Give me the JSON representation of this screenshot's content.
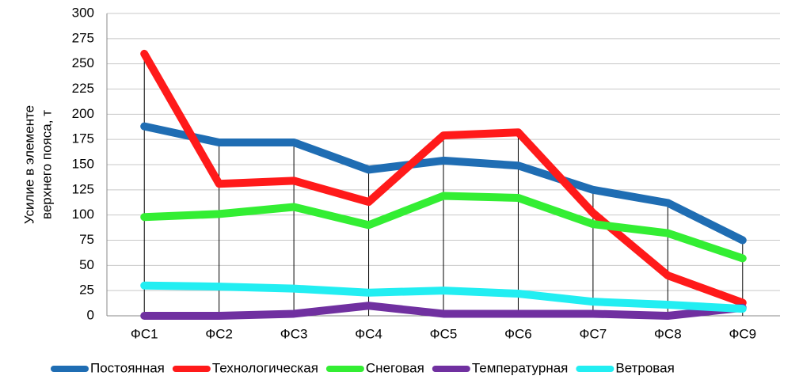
{
  "chart_data": {
    "type": "line",
    "ylabel": [
      "Усилие в элементе",
      "верхнего пояса, т"
    ],
    "categories": [
      "ФС1",
      "ФС2",
      "ФС3",
      "ФС4",
      "ФС5",
      "ФС6",
      "ФС7",
      "ФС8",
      "ФС9"
    ],
    "series": [
      {
        "name": "Постоянная",
        "color": "#1f6db3",
        "values": [
          188,
          172,
          172,
          145,
          154,
          149,
          125,
          112,
          75
        ]
      },
      {
        "name": "Технологическая",
        "color": "#ff1a1a",
        "values": [
          260,
          131,
          134,
          113,
          179,
          182,
          102,
          40,
          13
        ]
      },
      {
        "name": "Снеговая",
        "color": "#33ee33",
        "values": [
          98,
          101,
          108,
          90,
          119,
          117,
          91,
          82,
          57
        ]
      },
      {
        "name": "Температурная",
        "color": "#7030a0",
        "values": [
          0,
          0,
          2,
          10,
          2,
          2,
          2,
          0,
          8
        ]
      },
      {
        "name": "Ветровая",
        "color": "#22eef2",
        "values": [
          30,
          29,
          27,
          23,
          25,
          22,
          14,
          11,
          7
        ]
      }
    ],
    "ylim": [
      0,
      300
    ],
    "yticks": [
      0,
      25,
      50,
      75,
      100,
      125,
      150,
      175,
      200,
      225,
      250,
      275,
      300
    ],
    "grid": true,
    "drop_lines": true,
    "legend": "bottom"
  }
}
